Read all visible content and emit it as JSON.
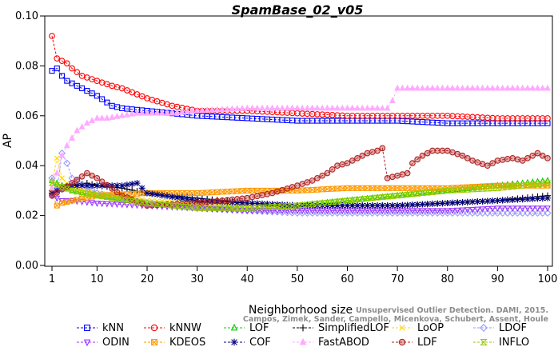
{
  "chart_data": {
    "type": "line",
    "title": "SpamBase_02_v05",
    "xlabel": "Neighborhood size",
    "ylabel": "AP",
    "xlim": [
      1,
      100
    ],
    "ylim": [
      0.0,
      0.1
    ],
    "xticks": [
      1,
      10,
      20,
      30,
      40,
      50,
      60,
      70,
      80,
      90,
      100
    ],
    "xtick_labels": [
      "1",
      "10",
      "20",
      "30",
      "40",
      "50",
      "60",
      "70",
      "80",
      "90",
      "100"
    ],
    "yticks": [
      0.0,
      0.02,
      0.04,
      0.06,
      0.08,
      0.1
    ],
    "ytick_labels": [
      "0.00",
      "0.02",
      "0.04",
      "0.06",
      "0.08",
      "0.10"
    ],
    "grid": false,
    "legend_position": "bottom",
    "citation": "Campos, Zimek, Sander, Campello, Micenkova, Schubert, Assent, Houle",
    "citation_header": "Unsupervised Outlier Detection. DAMI, 2015.",
    "series": [
      {
        "name": "kNN",
        "color": "#0000ff",
        "marker": "square",
        "x": [
          1,
          2,
          3,
          4,
          5,
          7,
          10,
          13,
          15,
          20,
          25,
          30,
          40,
          50,
          60,
          70,
          80,
          90,
          100
        ],
        "y": [
          0.078,
          0.079,
          0.076,
          0.074,
          0.073,
          0.071,
          0.068,
          0.064,
          0.063,
          0.062,
          0.061,
          0.06,
          0.059,
          0.058,
          0.058,
          0.058,
          0.057,
          0.057,
          0.057
        ]
      },
      {
        "name": "kNNW",
        "color": "#ff0000",
        "marker": "circle",
        "x": [
          1,
          2,
          3,
          4,
          5,
          7,
          10,
          13,
          15,
          20,
          25,
          30,
          35,
          40,
          50,
          60,
          70,
          80,
          90,
          100
        ],
        "y": [
          0.092,
          0.083,
          0.082,
          0.081,
          0.079,
          0.076,
          0.074,
          0.072,
          0.071,
          0.067,
          0.064,
          0.062,
          0.062,
          0.062,
          0.061,
          0.06,
          0.06,
          0.06,
          0.059,
          0.059
        ]
      },
      {
        "name": "LOF",
        "color": "#00cc00",
        "marker": "triangle-up",
        "x": [
          1,
          3,
          5,
          10,
          20,
          30,
          40,
          50,
          60,
          70,
          80,
          90,
          100
        ],
        "y": [
          0.034,
          0.032,
          0.03,
          0.028,
          0.025,
          0.023,
          0.023,
          0.024,
          0.026,
          0.028,
          0.03,
          0.032,
          0.034
        ]
      },
      {
        "name": "SimplifiedLOF",
        "color": "#000000",
        "marker": "plus",
        "x": [
          1,
          3,
          5,
          8,
          10,
          15,
          20,
          30,
          40,
          50,
          60,
          70,
          80,
          90,
          100
        ],
        "y": [
          0.03,
          0.031,
          0.032,
          0.033,
          0.032,
          0.031,
          0.029,
          0.027,
          0.025,
          0.024,
          0.024,
          0.024,
          0.025,
          0.026,
          0.028
        ]
      },
      {
        "name": "LoOP",
        "color": "#ffd700",
        "marker": "x",
        "x": [
          1,
          2,
          3,
          5,
          10,
          20,
          30,
          40,
          50,
          60,
          70,
          80,
          90,
          100
        ],
        "y": [
          0.033,
          0.043,
          0.035,
          0.031,
          0.029,
          0.026,
          0.025,
          0.024,
          0.024,
          0.024,
          0.024,
          0.025,
          0.026,
          0.027
        ]
      },
      {
        "name": "LDOF",
        "color": "#9999ff",
        "marker": "diamond",
        "x": [
          1,
          2,
          3,
          4,
          5,
          10,
          20,
          30,
          40,
          50,
          60,
          70,
          80,
          90,
          100
        ],
        "y": [
          0.035,
          0.03,
          0.045,
          0.041,
          0.035,
          0.029,
          0.025,
          0.023,
          0.022,
          0.021,
          0.021,
          0.021,
          0.021,
          0.021,
          0.021
        ]
      },
      {
        "name": "ODIN",
        "color": "#9933ff",
        "marker": "triangle-down",
        "x": [
          1,
          3,
          5,
          10,
          20,
          30,
          40,
          50,
          60,
          70,
          80,
          90,
          100
        ],
        "y": [
          0.028,
          0.026,
          0.026,
          0.025,
          0.024,
          0.023,
          0.022,
          0.022,
          0.022,
          0.022,
          0.022,
          0.023,
          0.023
        ]
      },
      {
        "name": "KDEOS",
        "color": "#ff9900",
        "marker": "square-x",
        "x": [
          1,
          2,
          3,
          5,
          10,
          20,
          30,
          40,
          50,
          60,
          70,
          80,
          90,
          100
        ],
        "y": [
          0.029,
          0.024,
          0.025,
          0.026,
          0.028,
          0.029,
          0.029,
          0.03,
          0.03,
          0.031,
          0.031,
          0.031,
          0.032,
          0.032
        ]
      },
      {
        "name": "COF",
        "color": "#000080",
        "marker": "star",
        "x": [
          1,
          3,
          5,
          10,
          15,
          18,
          20,
          30,
          40,
          50,
          60,
          70,
          80,
          90,
          100
        ],
        "y": [
          0.029,
          0.031,
          0.032,
          0.032,
          0.032,
          0.033,
          0.029,
          0.026,
          0.025,
          0.024,
          0.024,
          0.024,
          0.025,
          0.026,
          0.027
        ]
      },
      {
        "name": "FastABOD",
        "color": "#ffaaff",
        "marker": "triangle-up-filled",
        "x": [
          1,
          2,
          3,
          4,
          5,
          6,
          8,
          10,
          12,
          15,
          18,
          20,
          25,
          30,
          40,
          50,
          60,
          68,
          69,
          70,
          80,
          90,
          100
        ],
        "y": [
          0.031,
          0.037,
          0.044,
          0.048,
          0.051,
          0.054,
          0.057,
          0.059,
          0.059,
          0.06,
          0.061,
          0.061,
          0.061,
          0.062,
          0.063,
          0.063,
          0.063,
          0.063,
          0.066,
          0.071,
          0.071,
          0.071,
          0.071
        ]
      },
      {
        "name": "LDF",
        "color": "#b22222",
        "marker": "circle-filled",
        "x": [
          1,
          5,
          8,
          10,
          15,
          20,
          30,
          40,
          45,
          50,
          53,
          56,
          58,
          60,
          62,
          64,
          66,
          67,
          68,
          70,
          72,
          73,
          75,
          77,
          80,
          83,
          85,
          88,
          90,
          93,
          95,
          98,
          100
        ],
        "y": [
          0.028,
          0.033,
          0.037,
          0.035,
          0.028,
          0.024,
          0.025,
          0.027,
          0.029,
          0.032,
          0.034,
          0.037,
          0.04,
          0.041,
          0.043,
          0.045,
          0.046,
          0.047,
          0.035,
          0.036,
          0.037,
          0.041,
          0.044,
          0.046,
          0.046,
          0.044,
          0.042,
          0.04,
          0.042,
          0.043,
          0.042,
          0.045,
          0.043
        ]
      },
      {
        "name": "INFLO",
        "color": "#99cc00",
        "marker": "hourglass",
        "x": [
          1,
          5,
          10,
          20,
          30,
          40,
          50,
          60,
          70,
          80,
          90,
          100
        ],
        "y": [
          0.033,
          0.03,
          0.028,
          0.025,
          0.023,
          0.023,
          0.024,
          0.026,
          0.028,
          0.03,
          0.031,
          0.033
        ]
      }
    ]
  }
}
